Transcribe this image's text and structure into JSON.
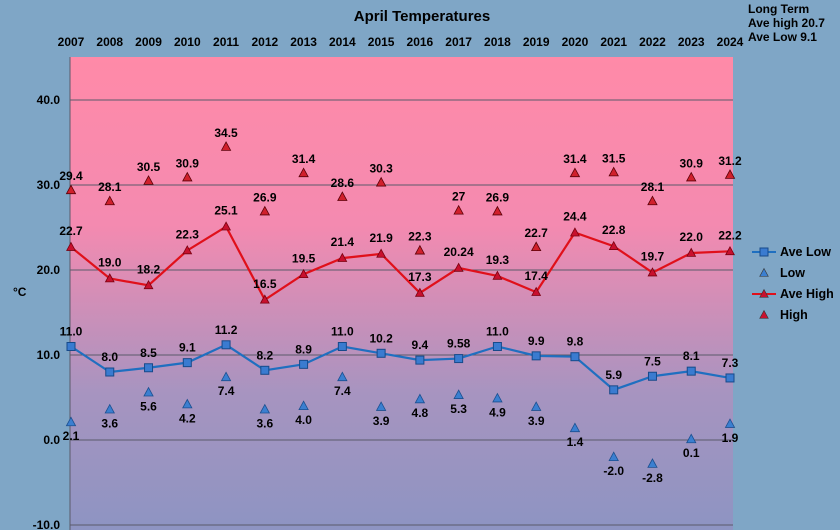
{
  "chart_data": {
    "type": "line",
    "title": "April Temperatures",
    "ylabel": "°C",
    "ylim": [
      -10,
      45
    ],
    "y_ticks": [
      40,
      30,
      20,
      10,
      0,
      -10
    ],
    "y_tick_labels": [
      "40.0",
      "30.0",
      "20.0",
      "10.0",
      "0.0",
      "-10.0"
    ],
    "x_position": "top",
    "categories": [
      "2007",
      "2008",
      "2009",
      "2010",
      "2011",
      "2012",
      "2013",
      "2014",
      "2015",
      "2016",
      "2017",
      "2018",
      "2019",
      "2020",
      "2021",
      "2022",
      "2023",
      "2024"
    ],
    "grid": true,
    "legend_position": "right",
    "series": [
      {
        "name": "Ave Low",
        "style": "line-square",
        "color": "#1f6fc0",
        "values": [
          11.0,
          8.0,
          8.5,
          9.1,
          11.2,
          8.2,
          8.9,
          11.0,
          10.2,
          9.4,
          9.58,
          11.0,
          9.9,
          9.8,
          5.9,
          7.5,
          8.1,
          7.3
        ],
        "labels": [
          "11.0",
          "8.0",
          "8.5",
          "9.1",
          "11.2",
          "8.2",
          "8.9",
          "11.0",
          "10.2",
          "9.4",
          "9.58",
          "11.0",
          "9.9",
          "9.8",
          "5.9",
          "7.5",
          "8.1",
          "7.3"
        ]
      },
      {
        "name": "Low",
        "style": "marker-triangle",
        "color": "#1f6fc0",
        "values": [
          2.1,
          3.6,
          5.6,
          4.2,
          7.4,
          3.6,
          4.0,
          7.4,
          3.9,
          4.8,
          5.3,
          4.9,
          3.9,
          1.4,
          -2.0,
          -2.8,
          0.1,
          1.9
        ],
        "labels": [
          "2.1",
          "3.6",
          "5.6",
          "4.2",
          "7.4",
          "3.6",
          "4.0",
          "7.4",
          "3.9",
          "4.8",
          "5.3",
          "4.9",
          "3.9",
          "1.4",
          "-2.0",
          "-2.8",
          "0.1",
          "1.9"
        ]
      },
      {
        "name": "Ave High",
        "style": "line-triangle",
        "color": "#e0101a",
        "values": [
          22.7,
          19.0,
          18.2,
          22.3,
          25.1,
          16.5,
          19.5,
          21.4,
          21.9,
          17.3,
          20.24,
          19.3,
          17.4,
          24.4,
          22.8,
          19.7,
          22.0,
          22.2
        ],
        "labels": [
          "22.7",
          "19.0",
          "18.2",
          "22.3",
          "25.1",
          "16.5",
          "19.5",
          "21.4",
          "21.9",
          "17.3",
          "20.24",
          "19.3",
          "17.4",
          "24.4",
          "22.8",
          "19.7",
          "22.0",
          "22.2"
        ]
      },
      {
        "name": "High",
        "style": "marker-triangle",
        "color": "#e0101a",
        "values": [
          29.4,
          28.1,
          30.5,
          30.9,
          34.5,
          26.9,
          31.4,
          28.6,
          30.3,
          22.3,
          27,
          26.9,
          22.7,
          31.4,
          31.5,
          28.1,
          30.9,
          31.2
        ],
        "labels": [
          "29.4",
          "28.1",
          "30.5",
          "30.9",
          "34.5",
          "26.9",
          "31.4",
          "28.6",
          "30.3",
          "22.3",
          "27",
          "26.9",
          "22.7",
          "31.4",
          "31.5",
          "28.1",
          "30.9",
          "31.2"
        ]
      }
    ],
    "annotation": [
      "Long Term",
      "Ave high 20.7",
      "Ave Low 9.1"
    ]
  }
}
